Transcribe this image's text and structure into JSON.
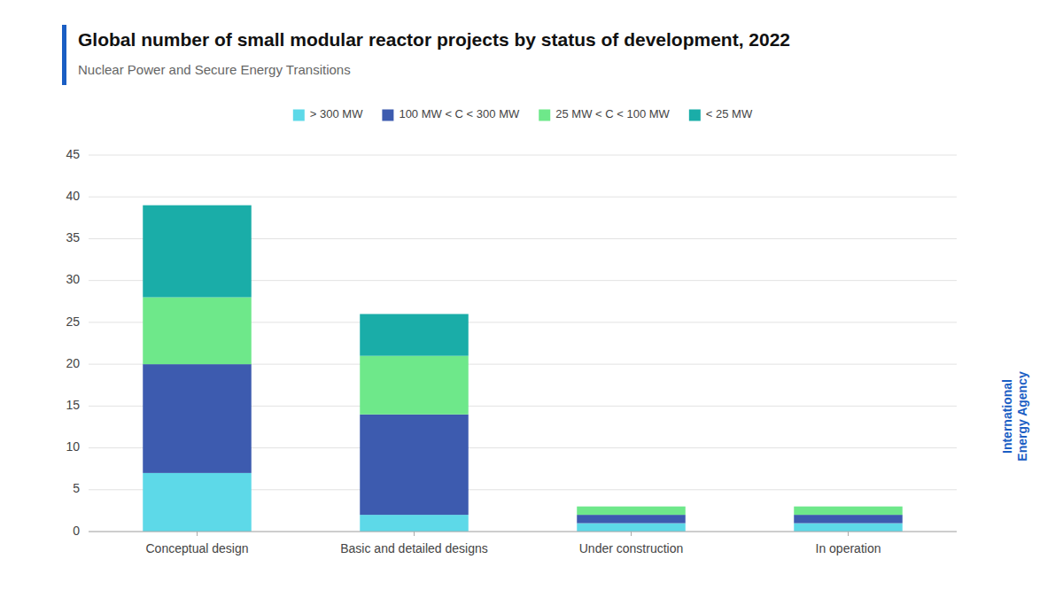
{
  "chart_data": {
    "type": "bar",
    "title": "Global number of small modular reactor projects by status of development, 2022",
    "subtitle": "Nuclear Power and Secure Energy Transitions",
    "categories": [
      "Conceptual design",
      "Basic and detailed designs",
      "Under construction",
      "In operation"
    ],
    "series": [
      {
        "name": "> 300 MW",
        "color": "#5DD9E8",
        "values": [
          7,
          2,
          1,
          1
        ]
      },
      {
        "name": "100 MW < C < 300 MW",
        "color": "#3D5BAF",
        "values": [
          13,
          12,
          1,
          1
        ]
      },
      {
        "name": "25 MW < C < 100 MW",
        "color": "#6EE88A",
        "values": [
          8,
          7,
          1,
          1
        ]
      },
      {
        "name": "< 25 MW",
        "color": "#1AADA8",
        "values": [
          11,
          5,
          0,
          0
        ]
      }
    ],
    "ylim": [
      0,
      45
    ],
    "yticks": [
      0,
      5,
      10,
      15,
      20,
      25,
      30,
      35,
      40,
      45
    ],
    "grid": true,
    "stacked": true,
    "legend": "top",
    "annotations": [
      "International\nEnergy Agency"
    ]
  }
}
